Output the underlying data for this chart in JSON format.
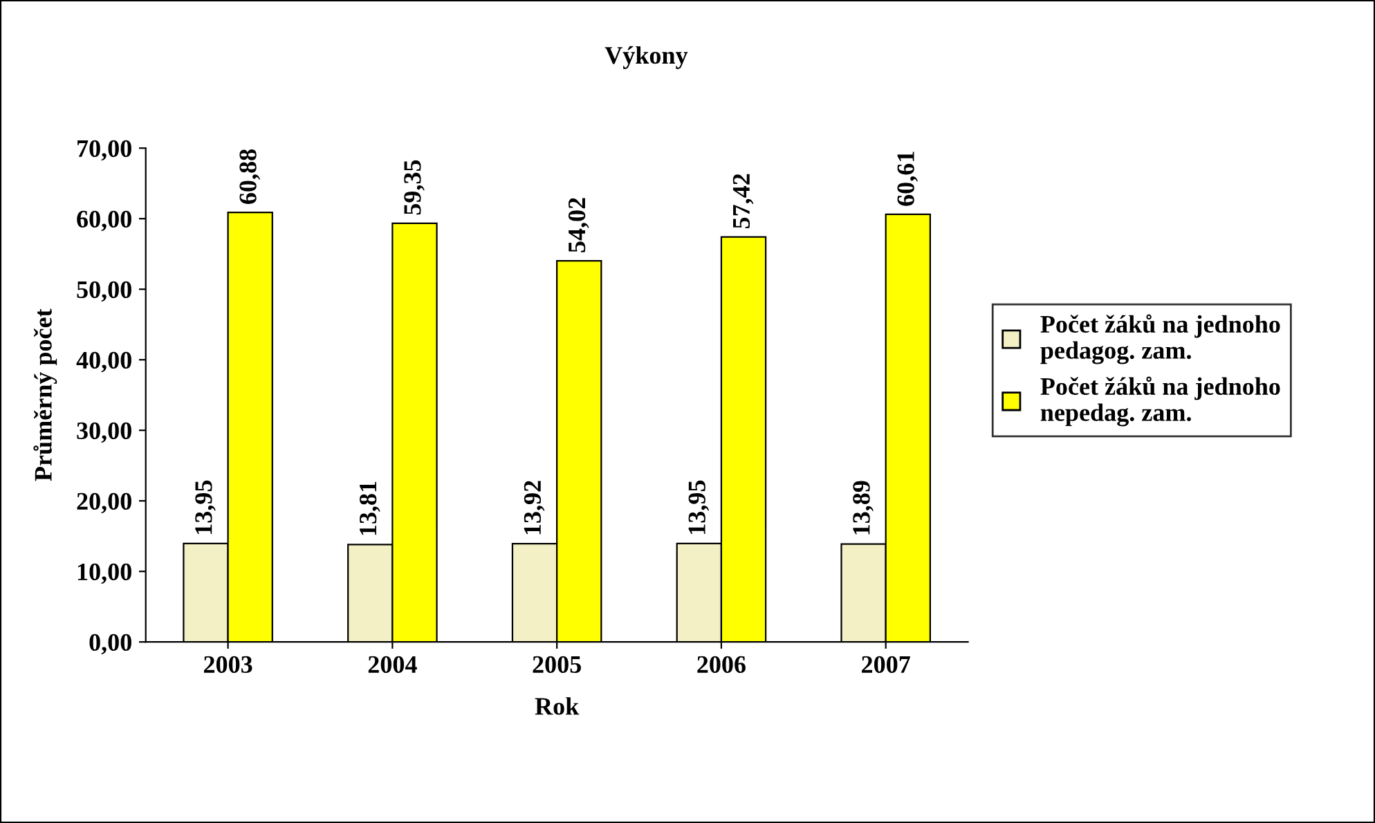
{
  "chart_data": {
    "type": "bar",
    "title": "Výkony",
    "xlabel": "Rok",
    "ylabel": "Průměrný počet",
    "categories": [
      "2003",
      "2004",
      "2005",
      "2006",
      "2007"
    ],
    "series": [
      {
        "name": "Počet žáků na jednoho\npedagog. zam.",
        "color": "#f2f0c4",
        "values": [
          13.95,
          13.81,
          13.92,
          13.95,
          13.89
        ],
        "value_labels": [
          "13,95",
          "13,81",
          "13,92",
          "13,95",
          "13,89"
        ]
      },
      {
        "name": "Počet žáků na jednoho\nnepedag. zam.",
        "color": "#ffff00",
        "values": [
          60.88,
          59.35,
          54.02,
          57.42,
          60.61
        ],
        "value_labels": [
          "60,88",
          "59,35",
          "54,02",
          "57,42",
          "60,61"
        ]
      }
    ],
    "ylim": [
      0,
      70
    ],
    "yticks": [
      {
        "value": 0,
        "label": "0,00"
      },
      {
        "value": 10,
        "label": "10,00"
      },
      {
        "value": 20,
        "label": "20,00"
      },
      {
        "value": 30,
        "label": "30,00"
      },
      {
        "value": 40,
        "label": "40,00"
      },
      {
        "value": 50,
        "label": "50,00"
      },
      {
        "value": 60,
        "label": "60,00"
      },
      {
        "value": 70,
        "label": "70,00"
      }
    ],
    "grid": false,
    "legend": "right"
  }
}
